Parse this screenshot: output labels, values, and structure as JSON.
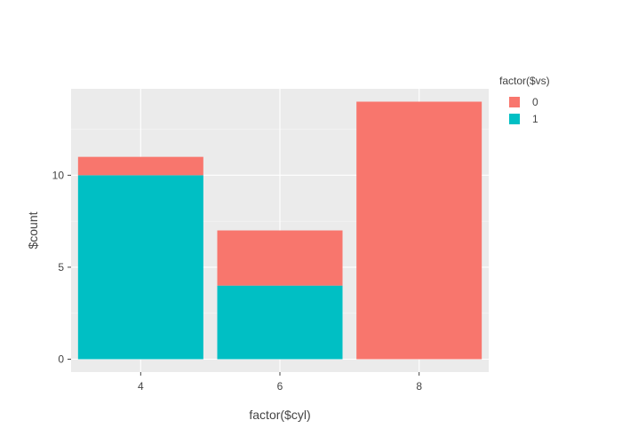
{
  "chart_data": {
    "type": "bar",
    "stacked": true,
    "categories": [
      "4",
      "6",
      "8"
    ],
    "series": [
      {
        "name": "0",
        "values": [
          1,
          3,
          14
        ],
        "color": "#F8766D"
      },
      {
        "name": "1",
        "values": [
          10,
          4,
          0
        ],
        "color": "#00BFC4"
      }
    ],
    "xlabel": "factor($cyl)",
    "ylabel": "$count",
    "ylim": [
      -0.7,
      14.7
    ],
    "yticks": [
      0,
      5,
      10
    ],
    "grid": true,
    "legend": {
      "title": "factor($vs)",
      "placement": "right"
    }
  },
  "colors": {
    "panel_background": "#EBEBEB",
    "gridline": "#FFFFFF"
  }
}
